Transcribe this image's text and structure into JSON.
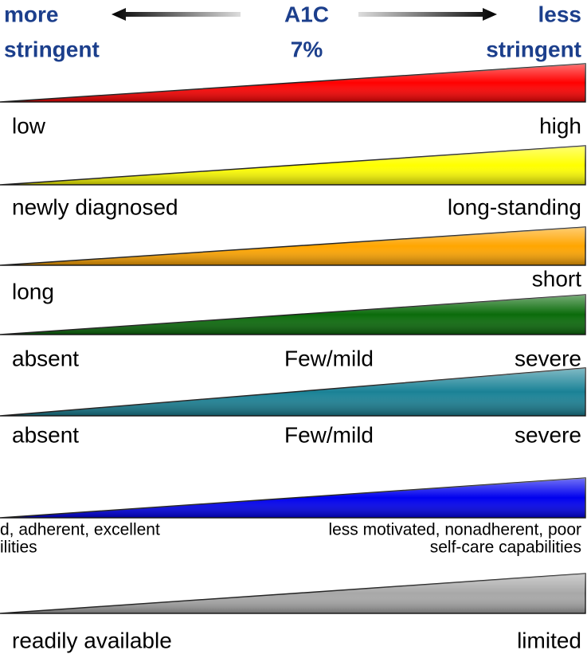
{
  "header": {
    "left": [
      "more",
      "stringent"
    ],
    "center": [
      "A1C",
      "7%"
    ],
    "right": [
      "less",
      "stringent"
    ]
  },
  "rows": [
    {
      "labels": [
        "low",
        "high"
      ]
    },
    {
      "labels": [
        "newly diagnosed",
        "long-standing"
      ]
    },
    {
      "labels": [
        "long",
        "short"
      ]
    },
    {
      "labels": [
        "absent",
        "Few/mild",
        "severe"
      ]
    },
    {
      "labels": [
        "absent",
        "Few/mild",
        "severe"
      ]
    },
    {
      "labels": [
        "d, adherent, excellent",
        "ilities",
        "less motivated, nonadherent, poor",
        "self-care capabilities"
      ]
    },
    {
      "labels": [
        "readily available",
        "limited"
      ]
    }
  ]
}
